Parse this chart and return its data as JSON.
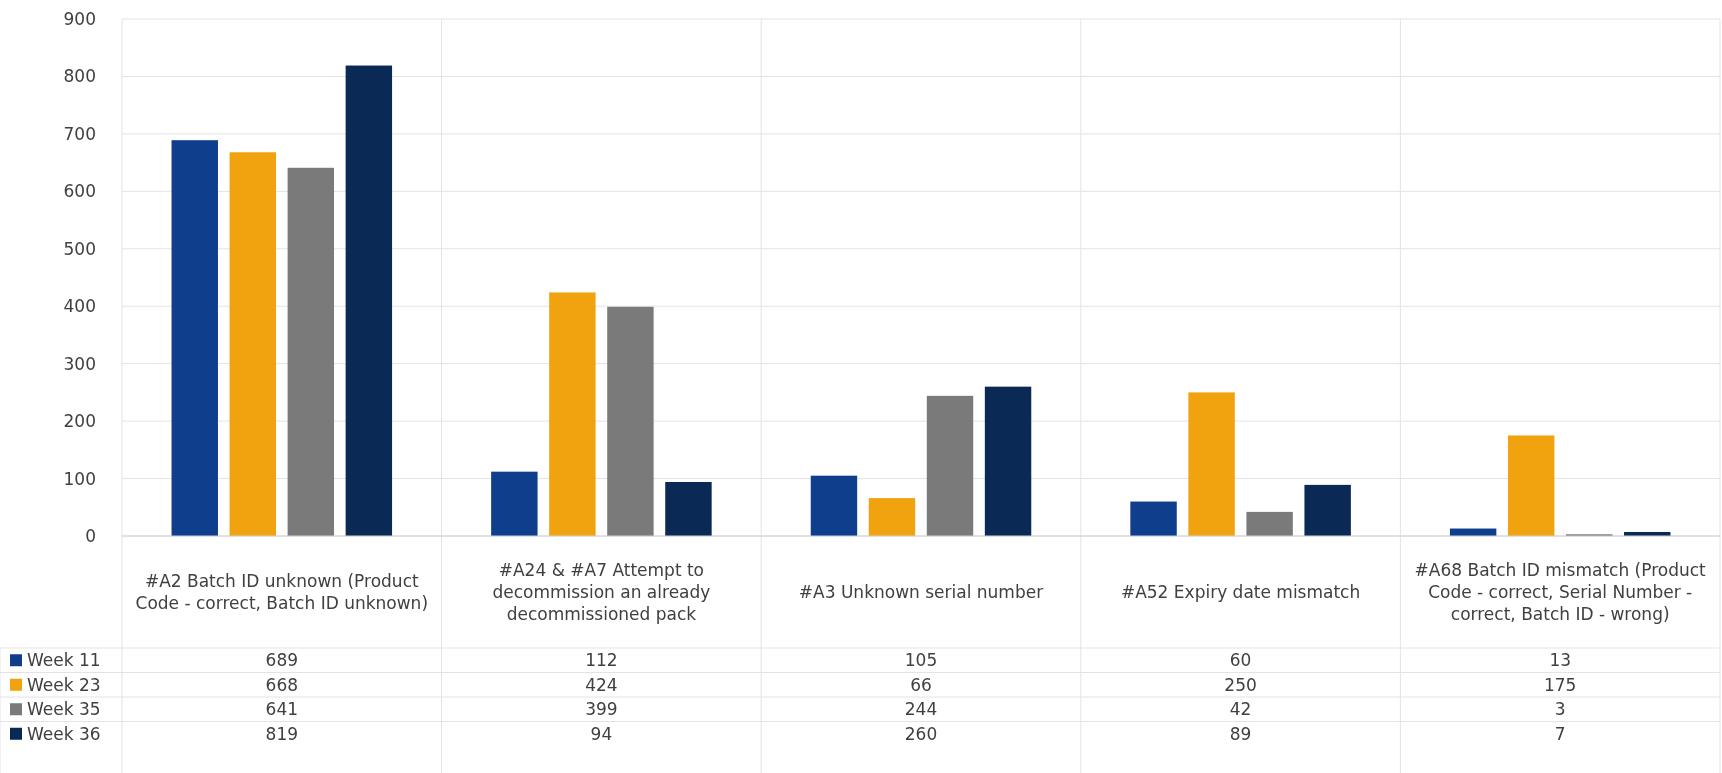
{
  "chart_data": {
    "type": "bar",
    "categories": [
      "#A2 Batch ID unknown (Product Code - correct, Batch ID unknown)",
      "#A24 & #A7 Attempt to decommission an already decommissioned pack",
      "#A3 Unknown serial number",
      "#A52 Expiry date mismatch",
      "#A68 Batch ID mismatch (Product Code - correct, Serial Number - correct, Batch ID - wrong)"
    ],
    "series": [
      {
        "name": "Week 11",
        "color": "#0f3f8c",
        "values": [
          689,
          112,
          105,
          60,
          13
        ]
      },
      {
        "name": "Week 23",
        "color": "#f0a30f",
        "values": [
          668,
          424,
          66,
          250,
          175
        ]
      },
      {
        "name": "Week 35",
        "color": "#7a7a7a",
        "values": [
          641,
          399,
          244,
          42,
          3
        ]
      },
      {
        "name": "Week 36",
        "color": "#0a2a55",
        "values": [
          819,
          94,
          260,
          89,
          7
        ]
      }
    ],
    "ylim": [
      0,
      900
    ],
    "yticks": [
      0,
      100,
      200,
      300,
      400,
      500,
      600,
      700,
      800,
      900
    ],
    "grid": true,
    "legend": "bottom left",
    "data_labels": true
  }
}
